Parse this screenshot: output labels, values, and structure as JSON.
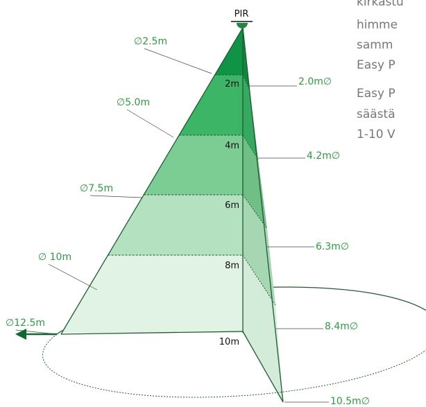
{
  "sensor_label": "PIR",
  "heights": [
    "2m",
    "4m",
    "6m",
    "8m",
    "10m"
  ],
  "left_diameters": [
    "∅2.5m",
    "∅5.0m",
    "∅7.5m",
    "∅ 10m",
    "∅12.5m"
  ],
  "right_diameters": [
    "2.0m∅",
    "4.2m∅",
    "6.3m∅",
    "8.4m∅",
    "10.5m∅"
  ],
  "side_text": [
    "kirkastu",
    "himme",
    "samm",
    "Easy P",
    "Easy P",
    "säästä",
    "1-10 V"
  ]
}
